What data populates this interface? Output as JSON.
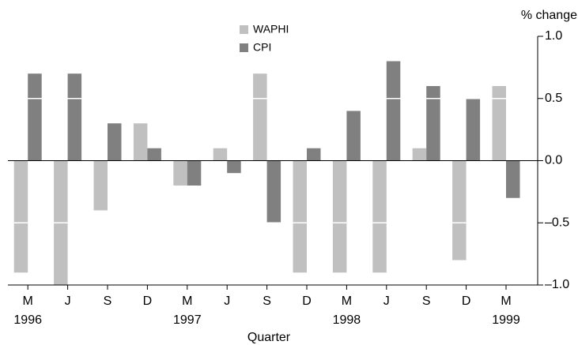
{
  "chart_data": {
    "type": "bar",
    "y_axis_label": "% change",
    "x_axis_label": "Quarter",
    "categories": [
      "M",
      "J",
      "S",
      "D",
      "M",
      "J",
      "S",
      "D",
      "M",
      "J",
      "S",
      "D",
      "M"
    ],
    "year_labels": [
      "1996",
      null,
      null,
      null,
      "1997",
      null,
      null,
      null,
      "1998",
      null,
      null,
      null,
      "1999"
    ],
    "series": [
      {
        "name": "WAPHI",
        "color": "#c0c0c0",
        "values": [
          -0.9,
          -1.0,
          -0.4,
          0.3,
          -0.2,
          0.1,
          0.7,
          -0.9,
          -0.9,
          -0.9,
          0.1,
          -0.8,
          0.6
        ]
      },
      {
        "name": "CPI",
        "color": "#808080",
        "values": [
          0.7,
          0.7,
          0.3,
          0.1,
          -0.2,
          -0.1,
          -0.5,
          0.1,
          0.4,
          0.8,
          0.6,
          0.5,
          -0.3
        ]
      }
    ],
    "ylim": [
      -1.0,
      1.0
    ],
    "yticks": [
      {
        "value": -1.0,
        "label": "–1.0"
      },
      {
        "value": -0.5,
        "label": "–0.5"
      },
      {
        "value": 0,
        "label": "0.0"
      },
      0.5,
      {
        "value": 1.0,
        "label": "1.0"
      }
    ],
    "grid": true,
    "y_axis_side": "right"
  }
}
